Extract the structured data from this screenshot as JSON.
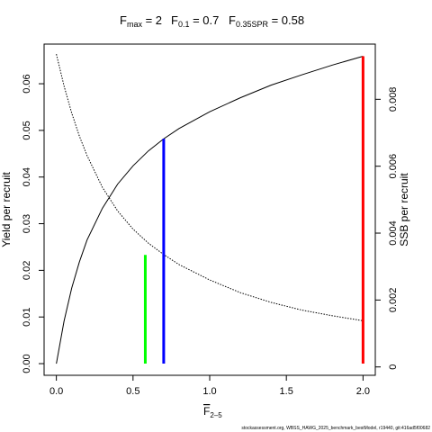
{
  "chart_data": {
    "type": "line",
    "title": {
      "fmax_label": "F",
      "fmax_sub": "max",
      "fmax_value": " = 2",
      "f01_label": "F",
      "f01_sub": "0.1",
      "f01_value": " = 0.7",
      "fspr_label": "F",
      "fspr_sub": "0.35SPR",
      "fspr_value": " = 0.58"
    },
    "xlabel": "F",
    "xlabel_sub": "2–5",
    "ylabel_left": "Yield per recruit",
    "ylabel_right": "SSB per recruit",
    "xlim": [
      -0.08,
      2.08
    ],
    "ylim_left": [
      -0.0025,
      0.0685
    ],
    "ylim_right": [
      -0.00025,
      0.00965
    ],
    "x_ticks": [
      {
        "value": 0,
        "label": "0.0"
      },
      {
        "value": 0.5,
        "label": "0.5"
      },
      {
        "value": 1.0,
        "label": "1.0"
      },
      {
        "value": 1.5,
        "label": "1.5"
      },
      {
        "value": 2.0,
        "label": "2.0"
      }
    ],
    "y_left_ticks": [
      {
        "value": 0,
        "label": "0.00"
      },
      {
        "value": 0.01,
        "label": "0.01"
      },
      {
        "value": 0.02,
        "label": "0.02"
      },
      {
        "value": 0.03,
        "label": "0.03"
      },
      {
        "value": 0.04,
        "label": "0.04"
      },
      {
        "value": 0.05,
        "label": "0.05"
      },
      {
        "value": 0.06,
        "label": "0.06"
      }
    ],
    "y_right_ticks": [
      {
        "value": 0,
        "label": "0"
      },
      {
        "value": 0.002,
        "label": "0.002"
      },
      {
        "value": 0.004,
        "label": "0.004"
      },
      {
        "value": 0.006,
        "label": "0.006"
      },
      {
        "value": 0.008,
        "label": "0.008"
      }
    ],
    "series": [
      {
        "axis": "left",
        "line_style": "solid",
        "color": "#000000",
        "x": [
          0,
          0.05,
          0.1,
          0.15,
          0.2,
          0.3,
          0.4,
          0.5,
          0.6,
          0.7,
          0.8,
          1.0,
          1.2,
          1.4,
          1.6,
          1.8,
          2.0
        ],
        "y": [
          0.0,
          0.0091,
          0.0162,
          0.0218,
          0.0265,
          0.0333,
          0.0385,
          0.0424,
          0.0456,
          0.0482,
          0.0504,
          0.054,
          0.057,
          0.0597,
          0.0619,
          0.064,
          0.0659
        ]
      },
      {
        "axis": "right",
        "line_style": "dotted",
        "color": "#000000",
        "x": [
          0,
          0.05,
          0.1,
          0.15,
          0.2,
          0.3,
          0.4,
          0.5,
          0.6,
          0.7,
          0.8,
          1.0,
          1.2,
          1.4,
          1.6,
          1.8,
          2.0
        ],
        "y": [
          0.00935,
          0.0084,
          0.00759,
          0.0069,
          0.00632,
          0.00537,
          0.00466,
          0.00412,
          0.0037,
          0.00336,
          0.00306,
          0.0026,
          0.00222,
          0.00193,
          0.0017,
          0.00153,
          0.00138
        ]
      }
    ],
    "reference_lines": [
      {
        "x": 2.0,
        "y_top": 0.0659,
        "color": "#ff0000"
      },
      {
        "x": 0.7,
        "y_top": 0.0482,
        "color": "#0000ff"
      },
      {
        "x": 0.58,
        "y_top": 0.0233,
        "color": "#00ff00"
      }
    ],
    "footnote": "stockassessment.org, WBSS_HAWG_2025_benchmark_bestModel, r19440, git:416ad5f00682"
  }
}
